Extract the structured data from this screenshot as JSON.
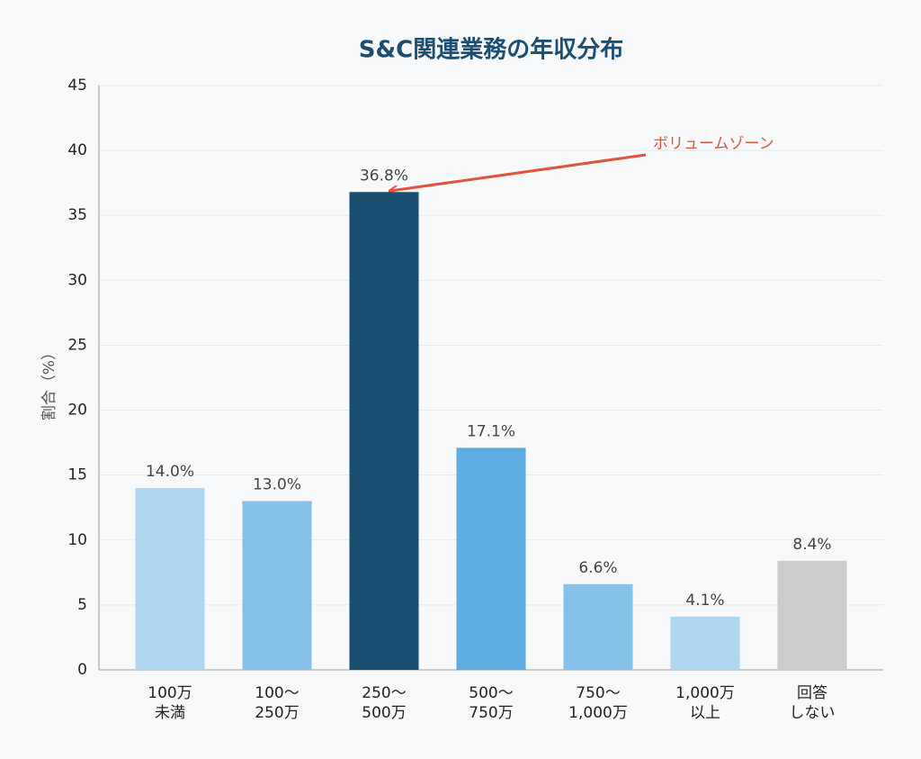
{
  "chart_data": {
    "type": "bar",
    "title": "S&C関連業務の年収分布",
    "y_label": "割合（%）",
    "categories": [
      [
        "100万",
        "未満"
      ],
      [
        "100〜",
        "250万"
      ],
      [
        "250〜",
        "500万"
      ],
      [
        "500〜",
        "750万"
      ],
      [
        "750〜",
        "1,000万"
      ],
      [
        "1,000万",
        "以上"
      ],
      [
        "回答",
        "しない"
      ]
    ],
    "values": [
      14.0,
      13.0,
      36.8,
      17.1,
      6.6,
      4.1,
      8.4
    ],
    "value_labels": [
      "14.0%",
      "13.0%",
      "36.8%",
      "17.1%",
      "6.6%",
      "4.1%",
      "8.4%"
    ],
    "colors": [
      "#aed6f1",
      "#85c1e9",
      "#1b4f72",
      "#5dade2",
      "#85c1e9",
      "#aed6f1",
      "#cccccc"
    ],
    "ylim": [
      0,
      45
    ],
    "yticks": [
      0,
      5,
      10,
      15,
      20,
      25,
      30,
      35,
      40,
      45
    ],
    "grid": true,
    "annotation": "ボリュームゾーン"
  }
}
